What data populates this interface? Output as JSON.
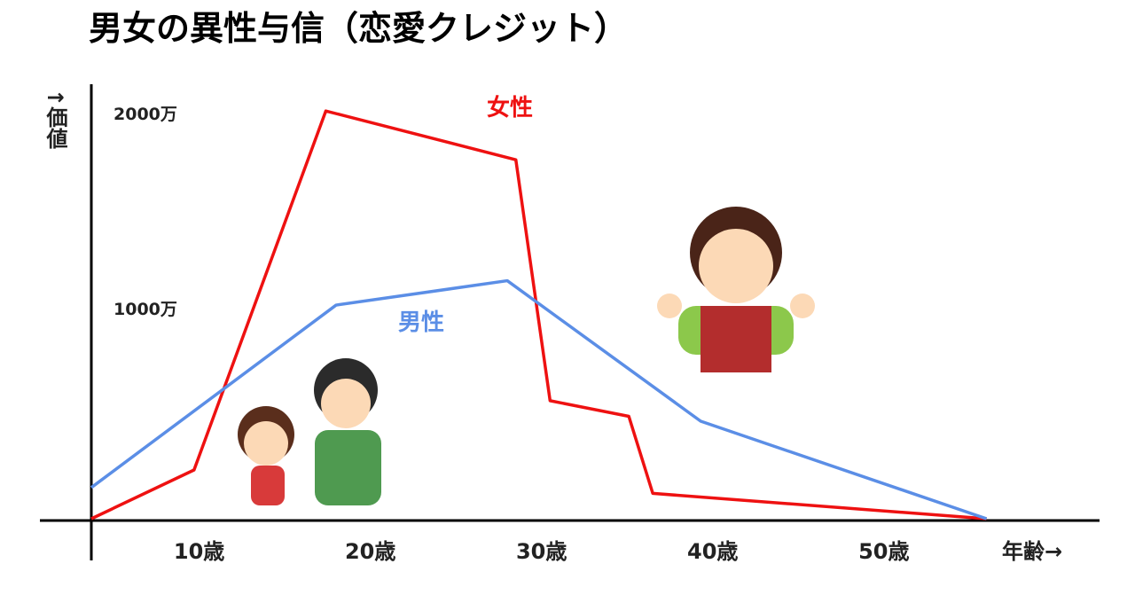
{
  "chart_data": {
    "type": "line",
    "title": "男女の異性与信（恋愛クレジット）",
    "y_label": "↑価値",
    "x_label": "年齢→",
    "xlim": [
      3.7,
      62.6
    ],
    "ylim": [
      0,
      2227
    ],
    "xticks": [
      {
        "value": 10,
        "label": "10歳"
      },
      {
        "value": 20,
        "label": "20歳"
      },
      {
        "value": 30,
        "label": "30歳"
      },
      {
        "value": 40,
        "label": "40歳"
      },
      {
        "value": 50,
        "label": "50歳"
      }
    ],
    "yticks": [
      {
        "value": 1000,
        "label": "1000万"
      },
      {
        "value": 2000,
        "label": "2000万"
      }
    ],
    "grid": false,
    "series": [
      {
        "name": "女性",
        "color": "#ee1111",
        "x": [
          3.7,
          9.7,
          17.4,
          28.5,
          30.5,
          35.1,
          36.5,
          56.0
        ],
        "values": [
          0,
          250,
          2090,
          1840,
          605,
          525,
          130,
          0
        ]
      },
      {
        "name": "男性",
        "color": "#5b8ee6",
        "x": [
          3.7,
          18.0,
          28.0,
          39.3,
          56.0
        ],
        "values": [
          160,
          1095,
          1220,
          500,
          0
        ]
      }
    ]
  }
}
